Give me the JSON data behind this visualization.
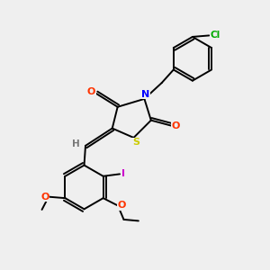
{
  "bg_color": "#efefef",
  "bond_color": "#000000",
  "atoms": {
    "S": {
      "color": "#cccc00"
    },
    "N": {
      "color": "#0000ff"
    },
    "O": {
      "color": "#ff3300"
    },
    "Cl": {
      "color": "#00aa00"
    },
    "I": {
      "color": "#cc00cc"
    },
    "H": {
      "color": "#777777"
    }
  },
  "lw": 1.4,
  "figsize": [
    3.0,
    3.0
  ],
  "dpi": 100
}
